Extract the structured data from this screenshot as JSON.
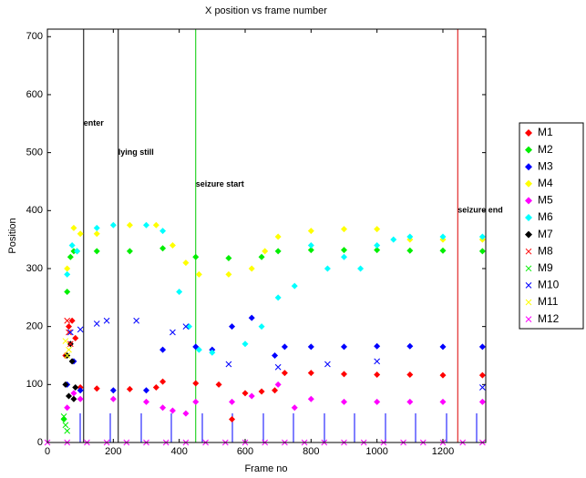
{
  "chart_data": {
    "type": "scatter",
    "title": "X position vs frame number",
    "x_label": "Frame no",
    "y_label": "Position",
    "xlim": [
      0,
      1330
    ],
    "ylim": [
      0,
      713
    ],
    "xticks": [
      0,
      200,
      400,
      600,
      800,
      1000,
      1200
    ],
    "yticks": [
      0,
      100,
      200,
      300,
      400,
      500,
      600,
      700
    ],
    "events": [
      {
        "x": 110,
        "y": 550,
        "label": "enter",
        "color": "#000000"
      },
      {
        "x": 215,
        "y": 500,
        "label": "lying still",
        "color": "#000000"
      },
      {
        "x": 450,
        "y": 445,
        "label": "seizure start",
        "color": "#00cc00"
      },
      {
        "x": 1245,
        "y": 400,
        "label": "seizure end",
        "color": "#dd0000"
      }
    ],
    "series": [
      {
        "name": "M1",
        "color": "#ff0000",
        "marker": "diamond",
        "x": [
          55,
          65,
          75,
          85,
          100,
          150,
          250,
          330,
          350,
          450,
          520,
          560,
          600,
          650,
          690,
          720,
          800,
          900,
          1000,
          1100,
          1200,
          1320
        ],
        "values": [
          150,
          200,
          210,
          180,
          95,
          93,
          92,
          95,
          105,
          102,
          100,
          40,
          85,
          88,
          90,
          120,
          120,
          118,
          117,
          117,
          116,
          116
        ]
      },
      {
        "name": "M2",
        "color": "#00ee00",
        "marker": "diamond",
        "x": [
          50,
          60,
          70,
          80,
          90,
          150,
          250,
          350,
          450,
          550,
          650,
          700,
          800,
          900,
          1000,
          1100,
          1200,
          1320
        ],
        "values": [
          40,
          260,
          320,
          330,
          330,
          330,
          330,
          335,
          320,
          318,
          320,
          330,
          332,
          332,
          332,
          331,
          331,
          330
        ]
      },
      {
        "name": "M3",
        "color": "#0000ff",
        "marker": "diamond",
        "x": [
          60,
          80,
          100,
          200,
          300,
          350,
          450,
          500,
          560,
          620,
          690,
          720,
          800,
          900,
          1000,
          1100,
          1200,
          1320
        ],
        "values": [
          100,
          140,
          90,
          90,
          90,
          160,
          165,
          160,
          200,
          215,
          150,
          165,
          165,
          165,
          166,
          166,
          165,
          165
        ]
      },
      {
        "name": "M4",
        "color": "#ffff00",
        "marker": "diamond",
        "x": [
          60,
          80,
          100,
          150,
          250,
          330,
          380,
          420,
          460,
          550,
          620,
          660,
          700,
          800,
          900,
          1000,
          1100,
          1200,
          1320
        ],
        "values": [
          300,
          370,
          360,
          360,
          375,
          375,
          340,
          310,
          290,
          290,
          300,
          330,
          355,
          365,
          368,
          368,
          350,
          350,
          350
        ]
      },
      {
        "name": "M5",
        "color": "#ff00ff",
        "marker": "diamond",
        "x": [
          60,
          80,
          100,
          200,
          300,
          350,
          380,
          420,
          450,
          560,
          620,
          700,
          750,
          800,
          900,
          1000,
          1100,
          1200,
          1320
        ],
        "values": [
          60,
          85,
          75,
          75,
          70,
          60,
          55,
          50,
          70,
          70,
          80,
          100,
          60,
          75,
          70,
          70,
          70,
          70,
          70
        ]
      },
      {
        "name": "M6",
        "color": "#00ffff",
        "marker": "diamond",
        "x": [
          60,
          75,
          90,
          150,
          200,
          300,
          350,
          400,
          430,
          460,
          500,
          600,
          650,
          700,
          750,
          800,
          850,
          900,
          950,
          1000,
          1050,
          1100,
          1200,
          1320
        ],
        "values": [
          290,
          340,
          330,
          370,
          375,
          375,
          365,
          260,
          200,
          160,
          155,
          170,
          200,
          250,
          270,
          340,
          300,
          320,
          300,
          340,
          350,
          355,
          355,
          355
        ]
      },
      {
        "name": "M7",
        "color": "#000000",
        "marker": "diamond",
        "x": [
          55,
          60,
          65,
          70,
          75,
          80,
          85
        ],
        "values": [
          100,
          150,
          80,
          170,
          140,
          75,
          95
        ]
      },
      {
        "name": "M8",
        "color": "#ff0000",
        "marker": "x",
        "x": [
          60,
          65,
          70
        ],
        "values": [
          210,
          190,
          170
        ]
      },
      {
        "name": "M9",
        "color": "#00ee00",
        "marker": "x",
        "x": [
          50,
          55,
          60
        ],
        "values": [
          45,
          30,
          20
        ]
      },
      {
        "name": "M10",
        "color": "#0000ff",
        "marker": "x",
        "x": [
          70,
          100,
          150,
          180,
          270,
          380,
          420,
          550,
          700,
          850,
          1000,
          1320
        ],
        "values": [
          190,
          195,
          205,
          210,
          210,
          190,
          200,
          135,
          130,
          135,
          140,
          95
        ]
      },
      {
        "name": "M11",
        "color": "#ffff00",
        "marker": "x",
        "x": [
          55,
          60,
          65
        ],
        "values": [
          175,
          150,
          160
        ]
      },
      {
        "name": "M12",
        "color": "#ff00ff",
        "marker": "x",
        "x": [
          0,
          60,
          120,
          180,
          240,
          300,
          360,
          420,
          480,
          540,
          600,
          660,
          720,
          780,
          840,
          900,
          960,
          1020,
          1080,
          1140,
          1200,
          1260,
          1320
        ],
        "values": [
          0,
          0,
          0,
          0,
          0,
          0,
          0,
          0,
          0,
          0,
          0,
          0,
          0,
          0,
          0,
          0,
          0,
          0,
          0,
          0,
          0,
          0,
          0
        ]
      }
    ]
  }
}
